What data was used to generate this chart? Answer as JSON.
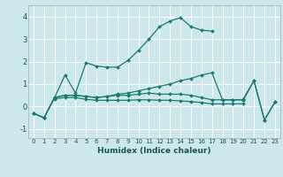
{
  "xlabel": "Humidex (Indice chaleur)",
  "bg_color": "#cde8ea",
  "grid_color": "#ffffff",
  "line_color": "#1a7a6e",
  "xlim": [
    -0.5,
    23.5
  ],
  "ylim": [
    -1.4,
    4.5
  ],
  "xticks": [
    0,
    1,
    2,
    3,
    4,
    5,
    6,
    7,
    8,
    9,
    10,
    11,
    12,
    13,
    14,
    15,
    16,
    17,
    18,
    19,
    20,
    21,
    22,
    23
  ],
  "yticks": [
    -1,
    0,
    1,
    2,
    3,
    4
  ],
  "line1_y": [
    -0.3,
    -0.5,
    0.4,
    1.4,
    0.6,
    1.95,
    1.8,
    1.75,
    1.75,
    2.05,
    2.5,
    3.0,
    3.55,
    3.8,
    3.95,
    3.55,
    3.4,
    3.35,
    null,
    null,
    0.35,
    1.15,
    -0.6,
    0.2
  ],
  "line2_y": [
    -0.3,
    -0.5,
    0.4,
    0.5,
    0.5,
    0.45,
    0.4,
    0.45,
    0.55,
    0.6,
    0.7,
    0.8,
    0.9,
    1.0,
    1.15,
    1.25,
    1.4,
    1.5,
    0.3,
    0.3,
    0.3,
    1.15,
    -0.6,
    0.2
  ],
  "line3_y": [
    -0.3,
    -0.5,
    0.4,
    0.5,
    0.5,
    0.45,
    0.4,
    0.45,
    0.5,
    0.5,
    0.55,
    0.6,
    0.55,
    0.55,
    0.55,
    0.5,
    0.4,
    0.3,
    0.3,
    0.3,
    0.3,
    null,
    null,
    null
  ],
  "line4_y": [
    null,
    null,
    0.35,
    0.4,
    0.4,
    0.32,
    0.28,
    0.28,
    0.28,
    0.28,
    0.3,
    0.3,
    0.28,
    0.28,
    0.25,
    0.22,
    0.18,
    0.12,
    0.12,
    0.12,
    0.12,
    null,
    null,
    null
  ]
}
